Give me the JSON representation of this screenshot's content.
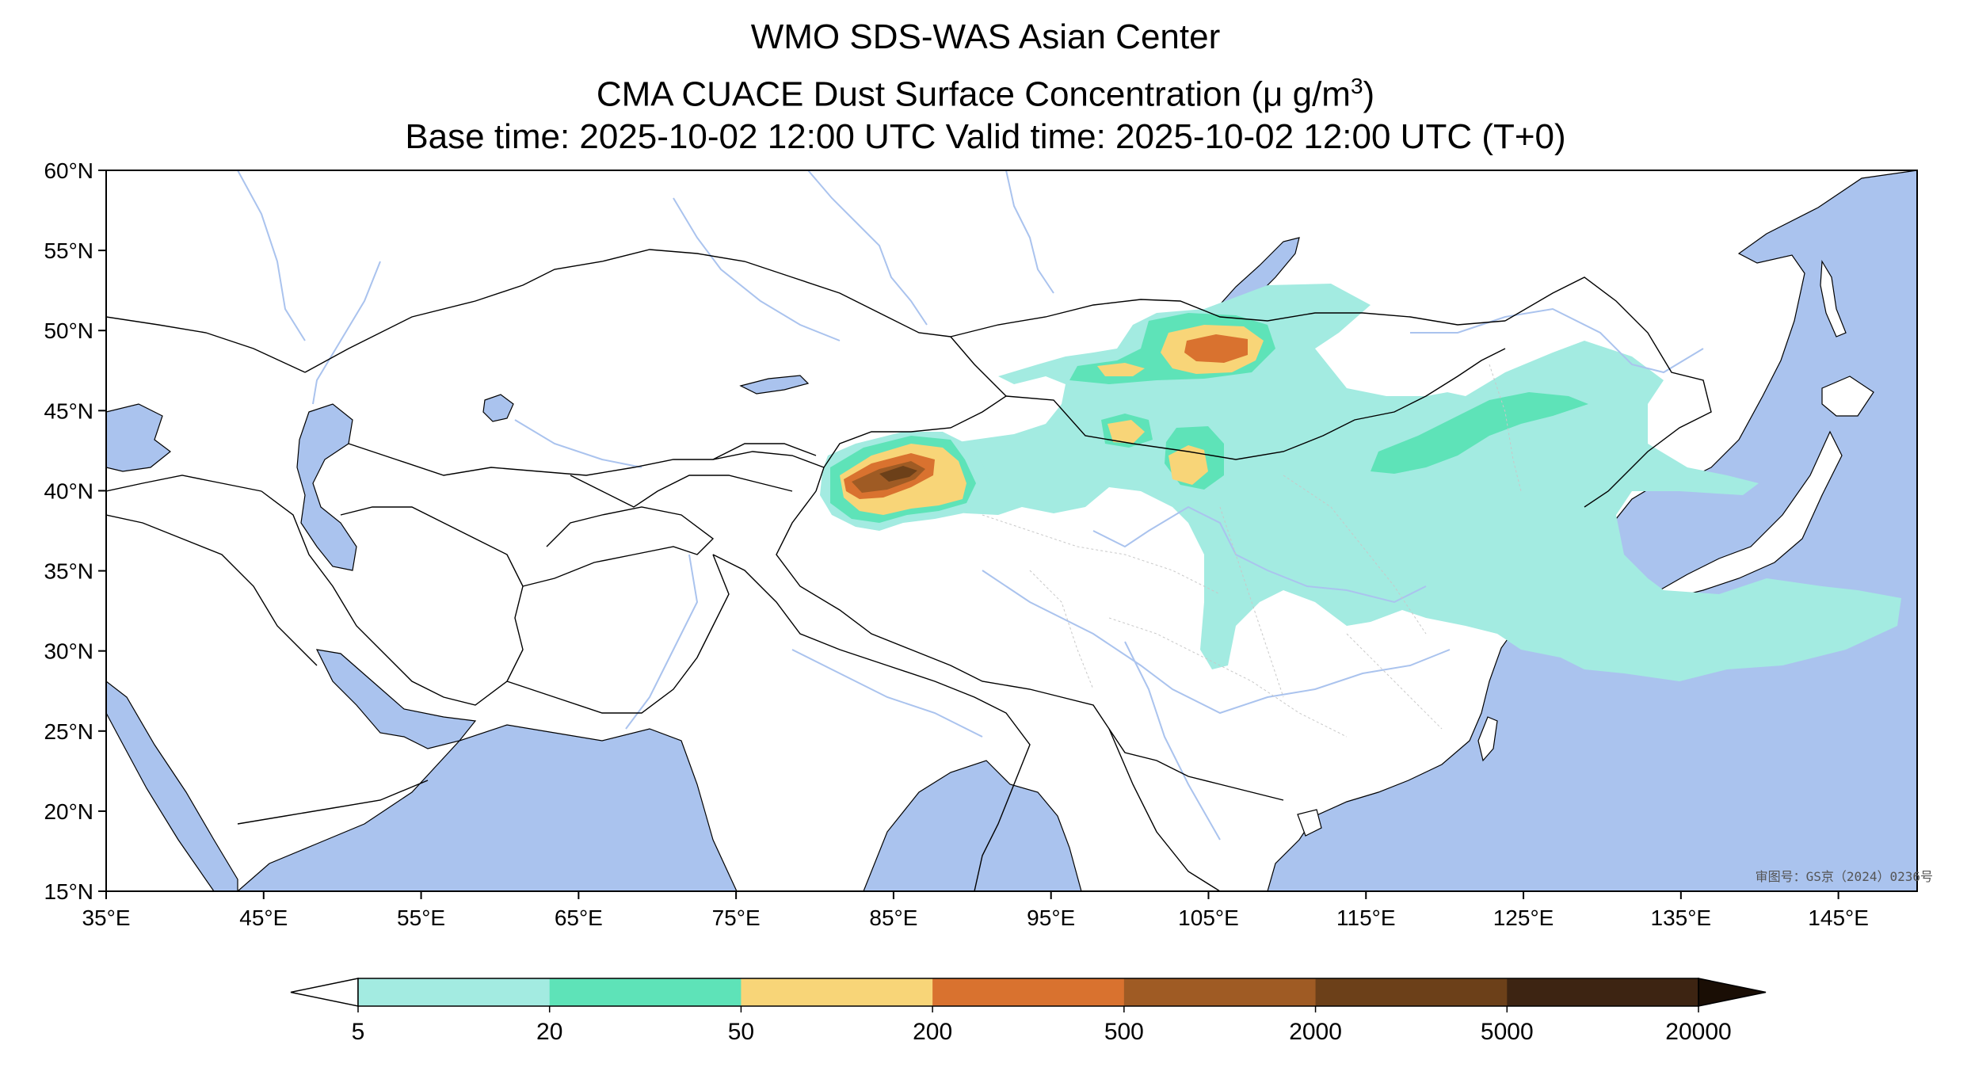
{
  "title": {
    "line1": "WMO SDS-WAS Asian Center",
    "line2_prefix": "CMA CUACE Dust Surface Concentration (",
    "line2_unit": "μ g/m",
    "line2_sup": "3",
    "line2_suffix": ")",
    "line3": "Base time: 2025-10-02 12:00 UTC Valid time: 2025-10-02 12:00 UTC (T+0)"
  },
  "map": {
    "lon_range": [
      35,
      150
    ],
    "lat_range": [
      15,
      60
    ],
    "lon_ticks": [
      "35°E",
      "45°E",
      "55°E",
      "65°E",
      "75°E",
      "85°E",
      "95°E",
      "105°E",
      "115°E",
      "125°E",
      "135°E",
      "145°E"
    ],
    "lat_ticks": [
      "60°N",
      "55°N",
      "50°N",
      "45°N",
      "40°N",
      "35°N",
      "30°N",
      "25°N",
      "20°N",
      "15°N"
    ],
    "review_number": "审图号：GS京（2024）0236号",
    "colors": {
      "ocean": "#aac3ee",
      "land": "#ffffff",
      "border": "#000000",
      "river": "#aac3ee"
    }
  },
  "colorbar": {
    "levels": [
      "5",
      "20",
      "50",
      "200",
      "500",
      "2000",
      "5000",
      "20000"
    ],
    "colors": [
      "#a3ebe1",
      "#5ee3b8",
      "#f8d578",
      "#d9722f",
      "#9f5b24",
      "#6c4019",
      "#3d2412"
    ],
    "extend": "both"
  }
}
